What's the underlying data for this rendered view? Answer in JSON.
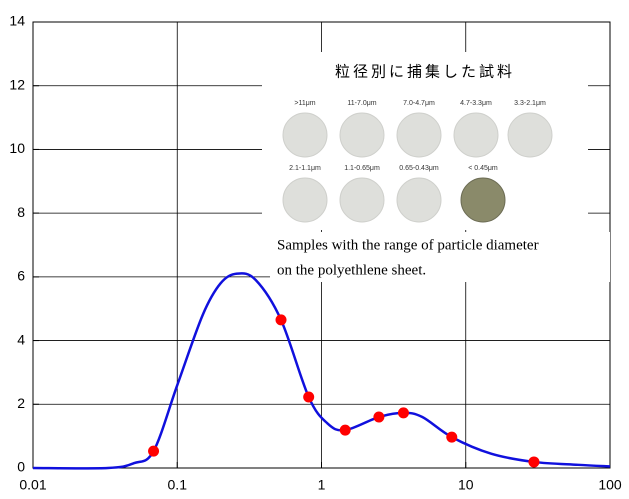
{
  "chart_data": {
    "type": "line",
    "xscale": "log",
    "xlim": [
      0.01,
      100
    ],
    "xticks": [
      0.01,
      0.1,
      1,
      10,
      100
    ],
    "ylim": [
      0,
      14
    ],
    "yticks": [
      0,
      2,
      4,
      6,
      8,
      10,
      12,
      14
    ],
    "grid": true,
    "series": [
      {
        "type": "line",
        "color": "#1010dd",
        "x": [
          0.01,
          0.033,
          0.05,
          0.0685,
          0.1,
          0.15,
          0.2,
          0.26,
          0.35,
          0.524,
          0.815,
          1.1,
          1.46,
          2.5,
          3.7,
          5,
          8,
          15,
          29.7,
          60,
          100
        ],
        "values": [
          0,
          0,
          0.15,
          0.53,
          2.6,
          4.8,
          5.8,
          6.1,
          5.9,
          4.65,
          2.23,
          1.4,
          1.19,
          1.6,
          1.73,
          1.6,
          0.97,
          0.45,
          0.19,
          0.1,
          0.05
        ]
      },
      {
        "type": "scatter",
        "color": "#ff0000",
        "x": [
          0.0685,
          0.524,
          0.815,
          1.46,
          2.5,
          3.7,
          8,
          29.7
        ],
        "values": [
          0.53,
          4.65,
          2.23,
          1.19,
          1.6,
          1.73,
          0.97,
          0.19
        ]
      }
    ],
    "inset": {
      "title": "粒径別に捕集した試料",
      "samples": [
        ">11μm",
        "11-7.0μm",
        "7.0-4.7μm",
        "4.7-3.3μm",
        "3.3-2.1μm",
        "2.1-1.1μm",
        "1.1-0.65μm",
        "0.65-0.43μm",
        "< 0.45μm"
      ],
      "caption": [
        "Samples with the range of particle diameter",
        "on the polyethlene sheet."
      ]
    }
  }
}
